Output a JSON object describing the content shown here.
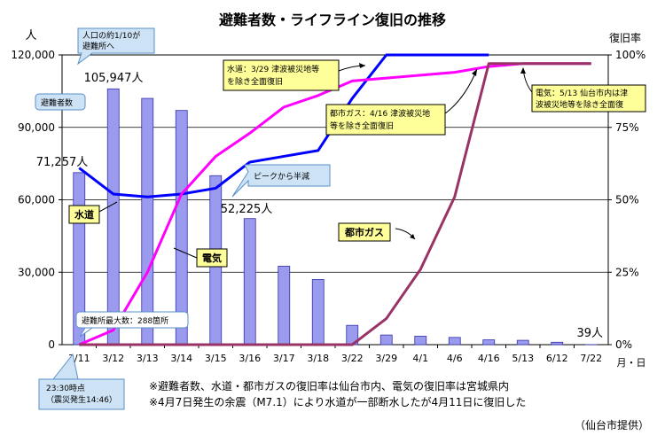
{
  "chart_data": {
    "type": "bar",
    "title": "避難者数・ライフライン復旧の推移",
    "left_unit": "人",
    "right_unit": "復旧率",
    "xlabel": "月・日",
    "categories": [
      "3/11",
      "3/12",
      "3/13",
      "3/14",
      "3/15",
      "3/16",
      "3/17",
      "3/18",
      "3/22",
      "3/29",
      "4/1",
      "4/6",
      "4/16",
      "5/13",
      "6/12",
      "7/22"
    ],
    "y_left": {
      "min": 0,
      "max": 120000,
      "ticks": [
        "0",
        "30,000",
        "60,000",
        "90,000",
        "120,000"
      ]
    },
    "y_right": {
      "min": 0,
      "max": 100,
      "ticks": [
        "0%",
        "25%",
        "50%",
        "75%",
        "100%"
      ]
    },
    "grid": true,
    "series": [
      {
        "name": "避難者数",
        "kind": "bar",
        "axis": "left",
        "color": "#9a9aee",
        "values": [
          71257,
          105947,
          102000,
          97000,
          70000,
          52225,
          32500,
          27000,
          8000,
          4000,
          3500,
          3000,
          2000,
          1800,
          1000,
          39
        ]
      },
      {
        "name": "水道",
        "kind": "line",
        "axis": "right",
        "color": "#0000ff",
        "values": [
          61,
          52,
          51,
          52,
          54,
          63,
          65,
          67,
          85,
          100,
          100,
          100,
          100,
          null,
          null,
          null
        ]
      },
      {
        "name": "電気",
        "kind": "line",
        "axis": "right",
        "color": "#ff00ff",
        "values": [
          0,
          5,
          25,
          52,
          65,
          73,
          82,
          86,
          91,
          92,
          93,
          94,
          96,
          97,
          97,
          97
        ]
      },
      {
        "name": "都市ガス",
        "kind": "line",
        "axis": "right",
        "color": "#993366",
        "values": [
          0,
          0,
          0,
          0,
          0,
          0,
          0,
          0,
          0,
          9,
          26,
          51,
          97,
          97,
          97,
          97
        ]
      }
    ],
    "bar_labels": {
      "3/11": "71,257人",
      "3/12": "105,947人",
      "3/16": "52,225人",
      "7/22": "39人"
    },
    "annotations": {
      "evac_30pct": "人口の約1/10が\n避難所へ",
      "evac_legend": "避難者数",
      "peak_half": "ピークから半減",
      "max_shelters": "避難所最大数：288箇所",
      "quake_time": "23:30時点\n（震災発生14:46）",
      "water_label": "水道",
      "elec_label": "電気",
      "gas_label": "都市ガス",
      "water_note": "水道：3/29 津波被災地等\nを除き全面復旧",
      "gas_note": "都市ガス：4/16 津波被災地\n等を除き全面復旧",
      "elec_note": "電気：5/13 仙台市内は津\n波被災地等を除き全面復",
      "footnote1": "※避難者数、水道・都市ガスの復旧率は仙台市内、電気の復旧率は宮城県内",
      "footnote2": "※4月7日発生の余震（M7.1）により水道が一部断水したが4月11日に復旧した",
      "source": "（仙台市提供）"
    }
  }
}
